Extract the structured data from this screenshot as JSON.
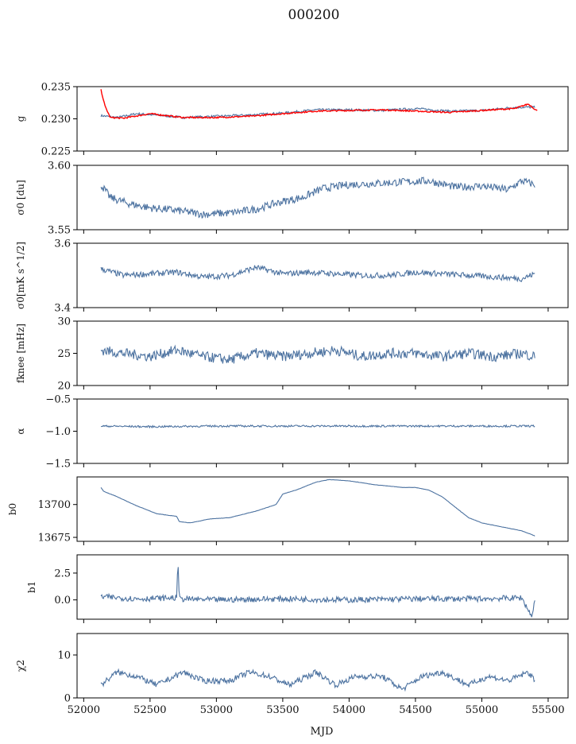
{
  "figure": {
    "title": "000200",
    "xlabel": "MJD"
  },
  "colors": {
    "series": "#4c72a0",
    "model": "#ff0000",
    "frame": "#000000"
  },
  "chart_data": [
    {
      "type": "line",
      "ylabel": "g",
      "xlim": [
        51950,
        55650
      ],
      "ylim": [
        0.225,
        0.235
      ],
      "yticks": [
        "0.225",
        "0.230",
        "0.235"
      ],
      "ytick_values": [
        0.225,
        0.23,
        0.235
      ],
      "series": [
        {
          "color": "#4c72a0",
          "x": [
            52130,
            52250,
            52400,
            52600,
            52750,
            53000,
            53250,
            53500,
            53750,
            54000,
            54250,
            54500,
            54750,
            55000,
            55250,
            55400
          ],
          "values": [
            0.2305,
            0.2302,
            0.2308,
            0.2305,
            0.2302,
            0.2304,
            0.2306,
            0.2309,
            0.2314,
            0.2314,
            0.2313,
            0.2316,
            0.2312,
            0.2313,
            0.2318,
            0.2318
          ]
        },
        {
          "color": "#ff0000",
          "x": [
            52130,
            52160,
            52200,
            52300,
            52500,
            52750,
            53000,
            53250,
            53500,
            53750,
            54000,
            54250,
            54500,
            54750,
            55000,
            55250,
            55350,
            55420
          ],
          "values": [
            0.2345,
            0.232,
            0.2302,
            0.2301,
            0.2308,
            0.2302,
            0.2302,
            0.2304,
            0.2308,
            0.2312,
            0.2313,
            0.2314,
            0.2312,
            0.231,
            0.2313,
            0.2316,
            0.2323,
            0.2312
          ]
        }
      ]
    },
    {
      "type": "line",
      "ylabel": "σ0 [du]",
      "xlim": [
        51950,
        55650
      ],
      "ylim": [
        3.55,
        3.6
      ],
      "yticks": [
        "3.55",
        "3.60"
      ],
      "ytick_values": [
        3.55,
        3.6
      ],
      "series": [
        {
          "color": "#4c72a0",
          "x": [
            52130,
            52200,
            52350,
            52500,
            52700,
            52900,
            53100,
            53300,
            53500,
            53650,
            53800,
            54000,
            54200,
            54400,
            54600,
            54800,
            55000,
            55200,
            55300,
            55400
          ],
          "values": [
            3.585,
            3.575,
            3.57,
            3.567,
            3.565,
            3.562,
            3.563,
            3.566,
            3.572,
            3.575,
            3.582,
            3.585,
            3.586,
            3.587,
            3.588,
            3.583,
            3.584,
            3.581,
            3.588,
            3.585
          ]
        }
      ]
    },
    {
      "type": "line",
      "ylabel": "σ0[mK s^1/2]",
      "xlim": [
        51950,
        55650
      ],
      "ylim": [
        3.4,
        3.6
      ],
      "yticks": [
        "3.4",
        "3.6"
      ],
      "ytick_values": [
        3.4,
        3.6
      ],
      "series": [
        {
          "color": "#4c72a0",
          "x": [
            52130,
            52300,
            52500,
            52700,
            52900,
            53100,
            53300,
            53500,
            53700,
            53900,
            54100,
            54300,
            54500,
            54700,
            54900,
            55100,
            55300,
            55400
          ],
          "values": [
            3.52,
            3.5,
            3.505,
            3.51,
            3.495,
            3.5,
            3.525,
            3.505,
            3.51,
            3.505,
            3.5,
            3.5,
            3.51,
            3.505,
            3.5,
            3.495,
            3.49,
            3.505
          ]
        }
      ]
    },
    {
      "type": "line",
      "ylabel": "fknee [mHz]",
      "xlim": [
        51950,
        55650
      ],
      "ylim": [
        20,
        30
      ],
      "yticks": [
        "20",
        "25",
        "30"
      ],
      "ytick_values": [
        20,
        25,
        30
      ],
      "series": [
        {
          "color": "#4c72a0",
          "x": [
            52130,
            52300,
            52500,
            52700,
            52900,
            53100,
            53300,
            53500,
            53700,
            53900,
            54100,
            54300,
            54500,
            54700,
            54900,
            55100,
            55300,
            55400
          ],
          "values": [
            25.5,
            25,
            24.5,
            25.5,
            24.5,
            24,
            25,
            24.5,
            25,
            25.5,
            24.5,
            25,
            25,
            24.5,
            25,
            24.5,
            25,
            24.5
          ]
        }
      ]
    },
    {
      "type": "line",
      "ylabel": "α",
      "xlim": [
        51950,
        55650
      ],
      "ylim": [
        -1.5,
        -0.5
      ],
      "yticks": [
        "−1.5",
        "−1.0",
        "−0.5"
      ],
      "ytick_values": [
        -1.5,
        -1.0,
        -0.5
      ],
      "series": [
        {
          "color": "#4c72a0",
          "x": [
            52130,
            52500,
            53000,
            53500,
            54000,
            54500,
            55000,
            55400
          ],
          "values": [
            -0.92,
            -0.93,
            -0.92,
            -0.92,
            -0.92,
            -0.92,
            -0.92,
            -0.92
          ]
        }
      ]
    },
    {
      "type": "line",
      "ylabel": "b0",
      "xlim": [
        51950,
        55650
      ],
      "ylim": [
        13672,
        13721
      ],
      "yticks": [
        "13675",
        "13700"
      ],
      "ytick_values": [
        13675,
        13700
      ],
      "series": [
        {
          "color": "#4c72a0",
          "x": [
            52130,
            52150,
            52250,
            52400,
            52550,
            52700,
            52720,
            52800,
            52950,
            53100,
            53300,
            53450,
            53500,
            53600,
            53750,
            53850,
            54000,
            54200,
            54400,
            54500,
            54600,
            54700,
            54800,
            54900,
            55000,
            55100,
            55200,
            55300,
            55380,
            55400
          ],
          "values": [
            13713,
            13710,
            13706,
            13699,
            13693,
            13691,
            13687,
            13686,
            13689,
            13690,
            13695,
            13700,
            13708,
            13711,
            13717,
            13719,
            13718,
            13715,
            13713,
            13713,
            13711,
            13706,
            13698,
            13690,
            13686,
            13684,
            13682,
            13680,
            13677,
            13676
          ]
        }
      ]
    },
    {
      "type": "line",
      "ylabel": "b1",
      "xlim": [
        51950,
        55650
      ],
      "ylim": [
        -1.8,
        4.2
      ],
      "yticks": [
        "0.0",
        "2.5"
      ],
      "ytick_values": [
        0,
        2.5
      ],
      "series": [
        {
          "color": "#4c72a0",
          "x": [
            52130,
            52400,
            52700,
            52710,
            52720,
            53000,
            53500,
            54000,
            54500,
            55000,
            55300,
            55380,
            55400
          ],
          "values": [
            0.3,
            0.1,
            0.2,
            3.8,
            0.1,
            0.0,
            0.1,
            0.0,
            0.1,
            0.1,
            0.2,
            -1.6,
            0.2
          ]
        }
      ]
    },
    {
      "type": "line",
      "ylabel": "χ2",
      "xlim": [
        51950,
        55650
      ],
      "ylim": [
        0,
        15
      ],
      "yticks": [
        "0",
        "10"
      ],
      "ytick_values": [
        0,
        10
      ],
      "series": [
        {
          "color": "#4c72a0",
          "x": [
            52130,
            52250,
            52400,
            52550,
            52750,
            52900,
            53100,
            53250,
            53400,
            53550,
            53750,
            53900,
            54050,
            54250,
            54400,
            54550,
            54700,
            54900,
            55050,
            55200,
            55350,
            55400
          ],
          "values": [
            3,
            6,
            5,
            3,
            6,
            4,
            4,
            6,
            5,
            3,
            6,
            3,
            5,
            5,
            2,
            5,
            6,
            3,
            5,
            4,
            6,
            4
          ]
        }
      ]
    }
  ],
  "x_axis": {
    "ticks": [
      "52000",
      "52500",
      "53000",
      "53500",
      "54000",
      "54500",
      "55000",
      "55500"
    ],
    "tick_values": [
      52000,
      52500,
      53000,
      53500,
      54000,
      54500,
      55000,
      55500
    ]
  }
}
